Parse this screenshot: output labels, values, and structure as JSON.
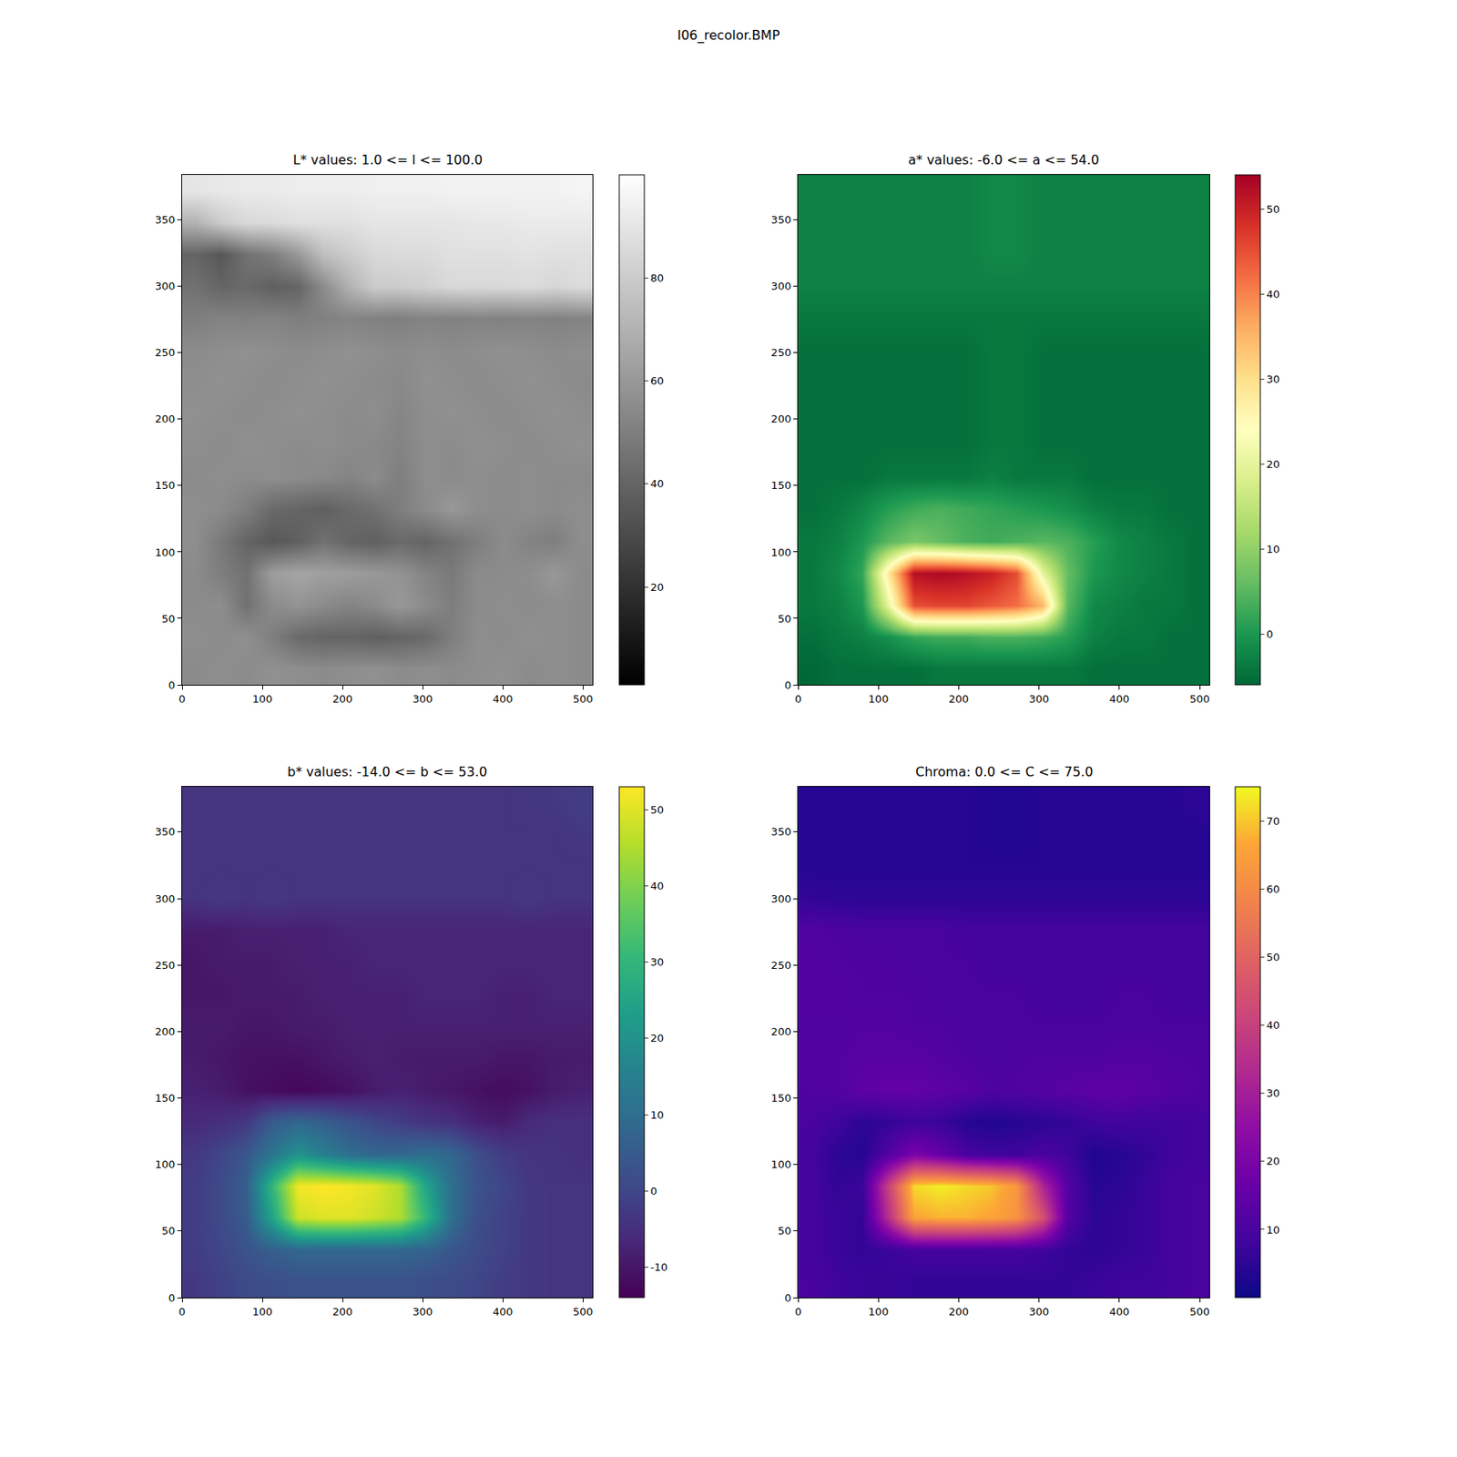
{
  "title": "I06_recolor.BMP",
  "chart_data": [
    {
      "type": "heatmap",
      "title": "L* values: 1.0 <= l <= 100.0",
      "color": "gray",
      "x": [
        16,
        48,
        80,
        112,
        144,
        176,
        208,
        240,
        272,
        304,
        336,
        368,
        400,
        432,
        464,
        496
      ],
      "y": [
        12,
        36,
        60,
        84,
        108,
        132,
        156,
        180,
        204,
        228,
        252,
        276,
        300,
        324,
        348,
        372
      ],
      "xlim": [
        0,
        512
      ],
      "ylim": [
        0,
        384
      ],
      "xticks": [
        0,
        100,
        200,
        300,
        400,
        500
      ],
      "yticks": [
        0,
        50,
        100,
        150,
        200,
        250,
        300,
        350
      ],
      "zlim": [
        1,
        100
      ],
      "zticks": [
        20,
        40,
        60,
        80
      ],
      "z": [
        [
          55,
          56,
          55,
          57,
          56,
          55,
          56,
          57,
          55,
          56,
          55,
          56,
          57,
          55,
          56,
          55
        ],
        [
          56,
          55,
          57,
          50,
          42,
          40,
          40,
          38,
          40,
          42,
          50,
          56,
          55,
          57,
          56,
          55
        ],
        [
          55,
          56,
          45,
          55,
          58,
          55,
          52,
          55,
          60,
          55,
          50,
          55,
          56,
          55,
          56,
          55
        ],
        [
          55,
          50,
          45,
          62,
          65,
          63,
          62,
          60,
          58,
          52,
          48,
          55,
          55,
          56,
          60,
          55
        ],
        [
          56,
          48,
          40,
          35,
          38,
          45,
          40,
          38,
          42,
          40,
          45,
          50,
          55,
          52,
          50,
          56
        ],
        [
          56,
          55,
          50,
          42,
          40,
          38,
          42,
          45,
          50,
          55,
          60,
          56,
          55,
          56,
          55,
          56
        ],
        [
          55,
          56,
          55,
          56,
          55,
          54,
          52,
          55,
          50,
          56,
          55,
          56,
          55,
          56,
          55,
          55
        ],
        [
          56,
          55,
          57,
          56,
          55,
          56,
          55,
          54,
          52,
          56,
          55,
          57,
          56,
          55,
          56,
          57
        ],
        [
          57,
          56,
          55,
          56,
          57,
          56,
          55,
          56,
          53,
          56,
          57,
          56,
          55,
          56,
          57,
          56
        ],
        [
          56,
          57,
          56,
          55,
          56,
          57,
          56,
          55,
          54,
          57,
          56,
          55,
          56,
          57,
          56,
          55
        ],
        [
          55,
          56,
          57,
          56,
          55,
          56,
          57,
          56,
          55,
          56,
          55,
          56,
          57,
          56,
          55,
          56
        ],
        [
          50,
          52,
          51,
          52,
          50,
          51,
          52,
          51,
          50,
          52,
          51,
          52,
          51,
          52,
          51,
          52
        ],
        [
          45,
          40,
          42,
          38,
          40,
          55,
          70,
          80,
          80,
          82,
          85,
          85,
          85,
          86,
          84,
          86
        ],
        [
          40,
          35,
          45,
          50,
          60,
          75,
          80,
          85,
          86,
          86,
          88,
          88,
          88,
          89,
          88,
          88
        ],
        [
          70,
          80,
          85,
          86,
          88,
          88,
          88,
          90,
          90,
          90,
          90,
          91,
          91,
          92,
          92,
          92
        ],
        [
          90,
          91,
          92,
          92,
          93,
          93,
          93,
          94,
          94,
          94,
          95,
          95,
          95,
          95,
          95,
          96
        ]
      ]
    },
    {
      "type": "heatmap",
      "title": "a* values: -6.0 <= a <= 54.0",
      "color": "RdYlGn_r",
      "x": [
        16,
        48,
        80,
        112,
        144,
        176,
        208,
        240,
        272,
        304,
        336,
        368,
        400,
        432,
        464,
        496
      ],
      "y": [
        12,
        36,
        60,
        84,
        108,
        132,
        156,
        180,
        204,
        228,
        252,
        276,
        300,
        324,
        348,
        372
      ],
      "xlim": [
        0,
        512
      ],
      "ylim": [
        0,
        384
      ],
      "xticks": [
        0,
        100,
        200,
        300,
        400,
        500
      ],
      "yticks": [
        0,
        50,
        100,
        150,
        200,
        250,
        300,
        350
      ],
      "zlim": [
        -6,
        54
      ],
      "zticks": [
        0,
        10,
        20,
        30,
        40,
        50
      ],
      "z": [
        [
          -6,
          -5,
          -5,
          -5,
          -5,
          -4,
          -4,
          -4,
          -4,
          -4,
          -4,
          -5,
          -5,
          -5,
          -5,
          -5
        ],
        [
          -5,
          -4,
          -3,
          -1,
          2,
          3,
          3,
          4,
          4,
          3,
          1,
          -3,
          -4,
          -4,
          -5,
          -5
        ],
        [
          -4,
          -3,
          0,
          20,
          45,
          46,
          46,
          44,
          42,
          35,
          5,
          -2,
          -3,
          -4,
          -4,
          -5
        ],
        [
          -4,
          -2,
          2,
          28,
          52,
          53,
          52,
          50,
          45,
          20,
          6,
          0,
          -2,
          -3,
          -4,
          -5
        ],
        [
          -4,
          -3,
          0,
          5,
          8,
          6,
          4,
          3,
          4,
          5,
          4,
          1,
          -2,
          -3,
          -4,
          -5
        ],
        [
          -5,
          -4,
          -2,
          1,
          3,
          4,
          3,
          2,
          1,
          0,
          -1,
          -3,
          -4,
          -4,
          -5,
          -5
        ],
        [
          -5,
          -5,
          -5,
          -4,
          -4,
          -4,
          -4,
          -3,
          -4,
          -4,
          -4,
          -5,
          -5,
          -5,
          -5,
          -5
        ],
        [
          -5,
          -5,
          -5,
          -5,
          -5,
          -5,
          -5,
          -4,
          -4,
          -5,
          -5,
          -5,
          -5,
          -5,
          -5,
          -5
        ],
        [
          -5,
          -5,
          -5,
          -5,
          -5,
          -5,
          -5,
          -4,
          -4,
          -5,
          -5,
          -5,
          -5,
          -5,
          -5,
          -5
        ],
        [
          -5,
          -5,
          -5,
          -5,
          -5,
          -5,
          -5,
          -4,
          -4,
          -5,
          -5,
          -5,
          -5,
          -5,
          -5,
          -5
        ],
        [
          -5,
          -5,
          -5,
          -5,
          -5,
          -5,
          -5,
          -4,
          -4,
          -5,
          -5,
          -5,
          -5,
          -5,
          -5,
          -5
        ],
        [
          -4,
          -4,
          -4,
          -4,
          -4,
          -4,
          -4,
          -4,
          -4,
          -4,
          -4,
          -4,
          -4,
          -4,
          -4,
          -4
        ],
        [
          -3,
          -3,
          -3,
          -3,
          -3,
          -3,
          -3,
          -3,
          -3,
          -3,
          -3,
          -3,
          -3,
          -3,
          -3,
          -3
        ],
        [
          -3,
          -3,
          -3,
          -3,
          -3,
          -3,
          -3,
          -2,
          -2,
          -3,
          -3,
          -3,
          -3,
          -3,
          -3,
          -3
        ],
        [
          -3,
          -3,
          -3,
          -3,
          -3,
          -3,
          -3,
          -2,
          -2,
          -3,
          -3,
          -3,
          -3,
          -3,
          -3,
          -3
        ],
        [
          -3,
          -3,
          -3,
          -3,
          -3,
          -3,
          -3,
          -2,
          -2,
          -3,
          -3,
          -3,
          -3,
          -3,
          -3,
          -3
        ]
      ]
    },
    {
      "type": "heatmap",
      "title": "b* values: -14.0 <= b <= 53.0",
      "color": "viridis",
      "x": [
        16,
        48,
        80,
        112,
        144,
        176,
        208,
        240,
        272,
        304,
        336,
        368,
        400,
        432,
        464,
        496
      ],
      "y": [
        12,
        36,
        60,
        84,
        108,
        132,
        156,
        180,
        204,
        228,
        252,
        276,
        300,
        324,
        348,
        372
      ],
      "xlim": [
        0,
        512
      ],
      "ylim": [
        0,
        384
      ],
      "xticks": [
        0,
        100,
        200,
        300,
        400,
        500
      ],
      "yticks": [
        0,
        50,
        100,
        150,
        200,
        250,
        300,
        350
      ],
      "zlim": [
        -14,
        53
      ],
      "zticks": [
        -10,
        0,
        10,
        20,
        30,
        40,
        50
      ],
      "z": [
        [
          -3,
          -1,
          1,
          2,
          3,
          3,
          3,
          3,
          3,
          2,
          1,
          0,
          -2,
          -3,
          -4,
          -4
        ],
        [
          -2,
          0,
          3,
          6,
          8,
          8,
          8,
          8,
          8,
          7,
          4,
          1,
          -1,
          -3,
          -4,
          -4
        ],
        [
          -2,
          1,
          5,
          25,
          48,
          50,
          50,
          48,
          45,
          30,
          10,
          2,
          -1,
          -3,
          -4,
          -4
        ],
        [
          -2,
          1,
          6,
          30,
          52,
          53,
          52,
          50,
          45,
          25,
          10,
          3,
          0,
          -3,
          -4,
          -4
        ],
        [
          -3,
          0,
          4,
          12,
          20,
          15,
          10,
          8,
          8,
          10,
          8,
          2,
          -2,
          -4,
          -4,
          -5
        ],
        [
          -6,
          -5,
          -3,
          5,
          8,
          6,
          3,
          0,
          -2,
          -4,
          -5,
          -8,
          -9,
          -6,
          -5,
          -5
        ],
        [
          -8,
          -9,
          -11,
          -12,
          -13,
          -12,
          -11,
          -9,
          -8,
          -9,
          -10,
          -11,
          -12,
          -11,
          -9,
          -8
        ],
        [
          -9,
          -10,
          -11,
          -11,
          -11,
          -10,
          -9,
          -8,
          -9,
          -9,
          -9,
          -9,
          -10,
          -10,
          -9,
          -9
        ],
        [
          -9,
          -9,
          -10,
          -10,
          -9,
          -9,
          -8,
          -8,
          -8,
          -8,
          -8,
          -8,
          -8,
          -8,
          -8,
          -8
        ],
        [
          -10,
          -10,
          -9,
          -9,
          -9,
          -8,
          -8,
          -8,
          -8,
          -7,
          -7,
          -7,
          -8,
          -8,
          -7,
          -7
        ],
        [
          -10,
          -9,
          -9,
          -9,
          -8,
          -8,
          -8,
          -7,
          -7,
          -7,
          -7,
          -7,
          -7,
          -7,
          -7,
          -7
        ],
        [
          -9,
          -9,
          -8,
          -8,
          -8,
          -8,
          -7,
          -7,
          -7,
          -7,
          -7,
          -7,
          -7,
          -7,
          -7,
          -7
        ],
        [
          -4,
          -3,
          -4,
          -3,
          -4,
          -4,
          -4,
          -4,
          -4,
          -4,
          -4,
          -4,
          -4,
          -3,
          -4,
          -4
        ],
        [
          -4,
          -4,
          -4,
          -4,
          -4,
          -4,
          -4,
          -4,
          -4,
          -4,
          -4,
          -4,
          -4,
          -4,
          -4,
          -4
        ],
        [
          -4,
          -4,
          -4,
          -4,
          -4,
          -4,
          -4,
          -4,
          -4,
          -4,
          -4,
          -4,
          -4,
          -4,
          -4,
          -3
        ],
        [
          -4,
          -4,
          -4,
          -4,
          -4,
          -4,
          -4,
          -4,
          -4,
          -4,
          -4,
          -4,
          -4,
          -3,
          -3,
          -2
        ]
      ]
    },
    {
      "type": "heatmap",
      "title": "Chroma: 0.0 <= C <= 75.0",
      "color": "plasma",
      "x": [
        16,
        48,
        80,
        112,
        144,
        176,
        208,
        240,
        272,
        304,
        336,
        368,
        400,
        432,
        464,
        496
      ],
      "y": [
        12,
        36,
        60,
        84,
        108,
        132,
        156,
        180,
        204,
        228,
        252,
        276,
        300,
        324,
        348,
        372
      ],
      "xlim": [
        0,
        512
      ],
      "ylim": [
        0,
        384
      ],
      "xticks": [
        0,
        100,
        200,
        300,
        400,
        500
      ],
      "yticks": [
        0,
        50,
        100,
        150,
        200,
        250,
        300,
        350
      ],
      "zlim": [
        0,
        75
      ],
      "zticks": [
        10,
        20,
        30,
        40,
        50,
        60,
        70
      ],
      "z": [
        [
          10,
          8,
          7,
          7,
          6,
          6,
          6,
          6,
          6,
          6,
          6,
          7,
          8,
          8,
          9,
          10
        ],
        [
          9,
          7,
          6,
          7,
          9,
          9,
          9,
          9,
          9,
          8,
          6,
          5,
          6,
          7,
          9,
          10
        ],
        [
          9,
          7,
          6,
          35,
          66,
          68,
          68,
          66,
          62,
          45,
          12,
          5,
          6,
          7,
          9,
          10
        ],
        [
          9,
          6,
          7,
          40,
          72,
          74,
          72,
          70,
          63,
          32,
          12,
          4,
          5,
          7,
          9,
          10
        ],
        [
          9,
          5,
          4,
          12,
          20,
          16,
          10,
          8,
          8,
          10,
          8,
          3,
          4,
          6,
          8,
          9
        ],
        [
          10,
          8,
          5,
          6,
          8,
          7,
          4,
          3,
          4,
          5,
          6,
          8,
          9,
          8,
          8,
          9
        ],
        [
          11,
          12,
          14,
          15,
          15,
          14,
          13,
          11,
          11,
          12,
          13,
          14,
          14,
          13,
          12,
          11
        ],
        [
          12,
          12,
          13,
          13,
          13,
          12,
          11,
          10,
          11,
          11,
          11,
          11,
          12,
          12,
          11,
          11
        ],
        [
          11,
          11,
          12,
          12,
          11,
          11,
          10,
          10,
          10,
          10,
          10,
          10,
          10,
          10,
          10,
          10
        ],
        [
          12,
          12,
          11,
          11,
          11,
          10,
          10,
          10,
          10,
          9,
          9,
          9,
          10,
          10,
          9,
          9
        ],
        [
          12,
          11,
          11,
          11,
          10,
          10,
          10,
          9,
          9,
          9,
          9,
          9,
          9,
          9,
          9,
          9
        ],
        [
          11,
          11,
          10,
          10,
          10,
          10,
          9,
          9,
          9,
          9,
          9,
          9,
          9,
          9,
          9,
          9
        ],
        [
          6,
          5,
          5,
          5,
          5,
          5,
          5,
          5,
          5,
          5,
          5,
          5,
          5,
          5,
          5,
          5
        ],
        [
          4,
          4,
          4,
          4,
          4,
          4,
          4,
          4,
          4,
          4,
          4,
          4,
          4,
          4,
          4,
          4
        ],
        [
          4,
          4,
          4,
          4,
          4,
          4,
          4,
          3,
          3,
          4,
          4,
          4,
          4,
          4,
          4,
          4
        ],
        [
          4,
          4,
          4,
          4,
          4,
          4,
          4,
          3,
          3,
          4,
          4,
          4,
          4,
          4,
          4,
          5
        ]
      ]
    }
  ]
}
